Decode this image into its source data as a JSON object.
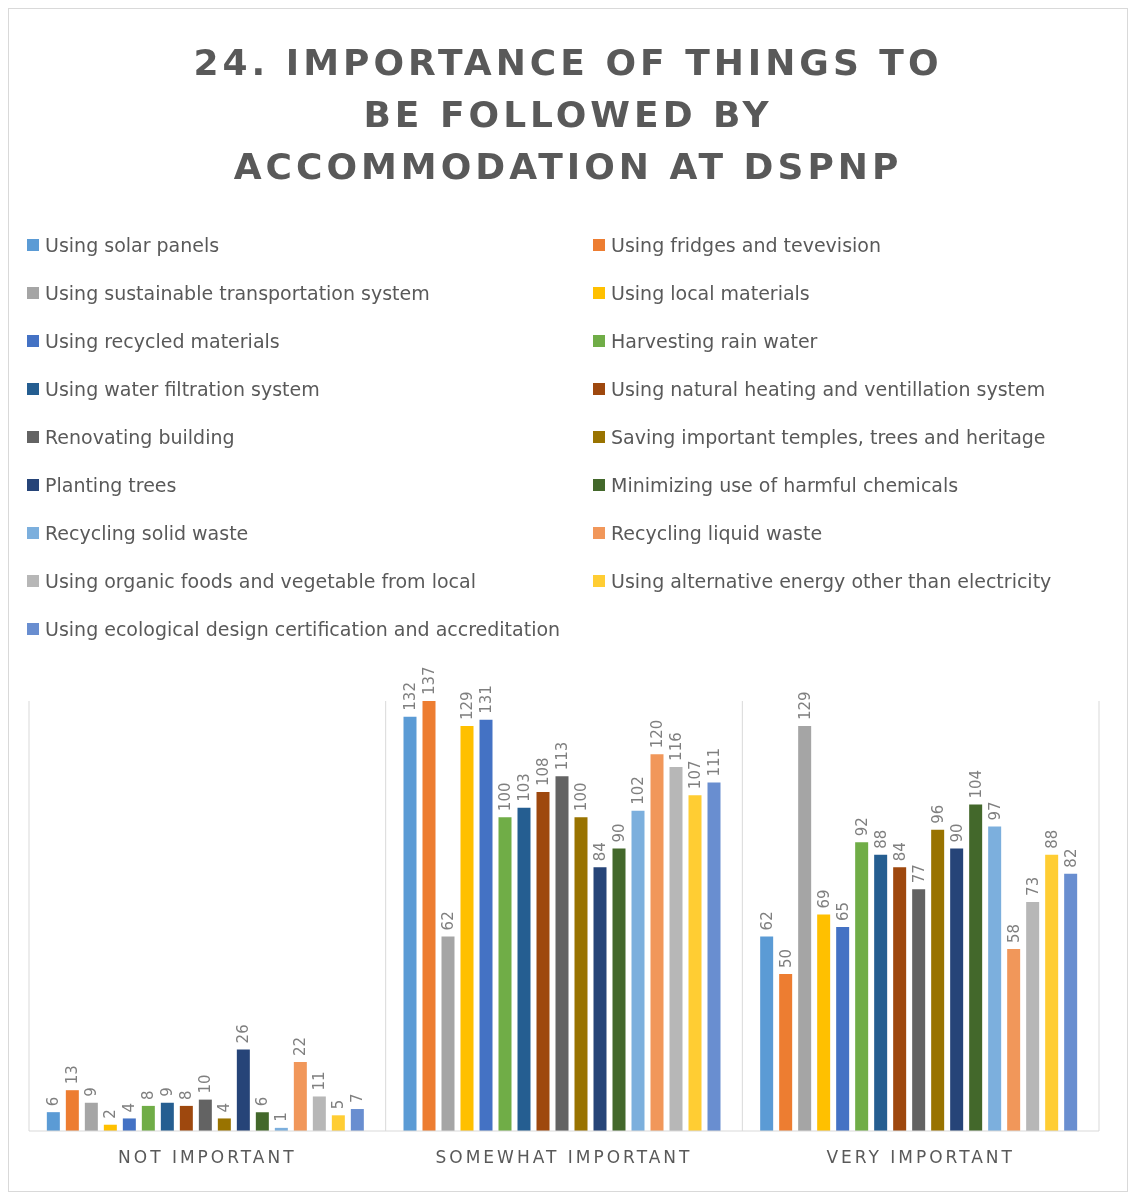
{
  "chart_data": {
    "type": "bar",
    "title": "24. IMPORTANCE OF THINGS TO BE FOLLOWED BY ACCOMMODATION AT DSPNP",
    "categories": [
      "NOT IMPORTANT",
      "SOMEWHAT IMPORTANT",
      "VERY IMPORTANT"
    ],
    "legend": "top",
    "grid": "x",
    "data_labels": true,
    "series": [
      {
        "name": "Using solar panels",
        "color": "#5b9bd5",
        "values": [
          6,
          132,
          62
        ]
      },
      {
        "name": "Using fridges and tevevision",
        "color": "#ed7d31",
        "values": [
          13,
          137,
          50
        ]
      },
      {
        "name": "Using sustainable transportation system",
        "color": "#a5a5a5",
        "values": [
          9,
          62,
          129
        ]
      },
      {
        "name": "Using local materials",
        "color": "#ffc000",
        "values": [
          2,
          129,
          69
        ]
      },
      {
        "name": "Using recycled materials",
        "color": "#4472c4",
        "values": [
          4,
          131,
          65
        ]
      },
      {
        "name": "Harvesting rain water",
        "color": "#70ad47",
        "values": [
          8,
          100,
          92
        ]
      },
      {
        "name": "Using water filtration system",
        "color": "#255e91",
        "values": [
          9,
          103,
          88
        ]
      },
      {
        "name": "Using natural heating and ventillation system",
        "color": "#9e480e",
        "values": [
          8,
          108,
          84
        ]
      },
      {
        "name": "Renovating building",
        "color": "#636363",
        "values": [
          10,
          113,
          77
        ]
      },
      {
        "name": "Saving important temples, trees and heritage",
        "color": "#997300",
        "values": [
          4,
          100,
          96
        ]
      },
      {
        "name": "Planting trees",
        "color": "#264478",
        "values": [
          26,
          84,
          90
        ]
      },
      {
        "name": "Minimizing use of harmful chemicals",
        "color": "#43682b",
        "values": [
          6,
          90,
          104
        ]
      },
      {
        "name": "Recycling solid waste",
        "color": "#7cafdd",
        "values": [
          1,
          102,
          97
        ]
      },
      {
        "name": "Recycling liquid waste",
        "color": "#f1975a",
        "values": [
          22,
          120,
          58
        ]
      },
      {
        "name": "Using organic foods and vegetable from local",
        "color": "#b7b7b7",
        "values": [
          11,
          116,
          73
        ]
      },
      {
        "name": "Using alternative energy other than electricity",
        "color": "#ffcd33",
        "values": [
          5,
          107,
          88
        ]
      },
      {
        "name": "Using ecological design certification and accreditation",
        "color": "#698ed0",
        "values": [
          7,
          111,
          82
        ]
      }
    ]
  }
}
